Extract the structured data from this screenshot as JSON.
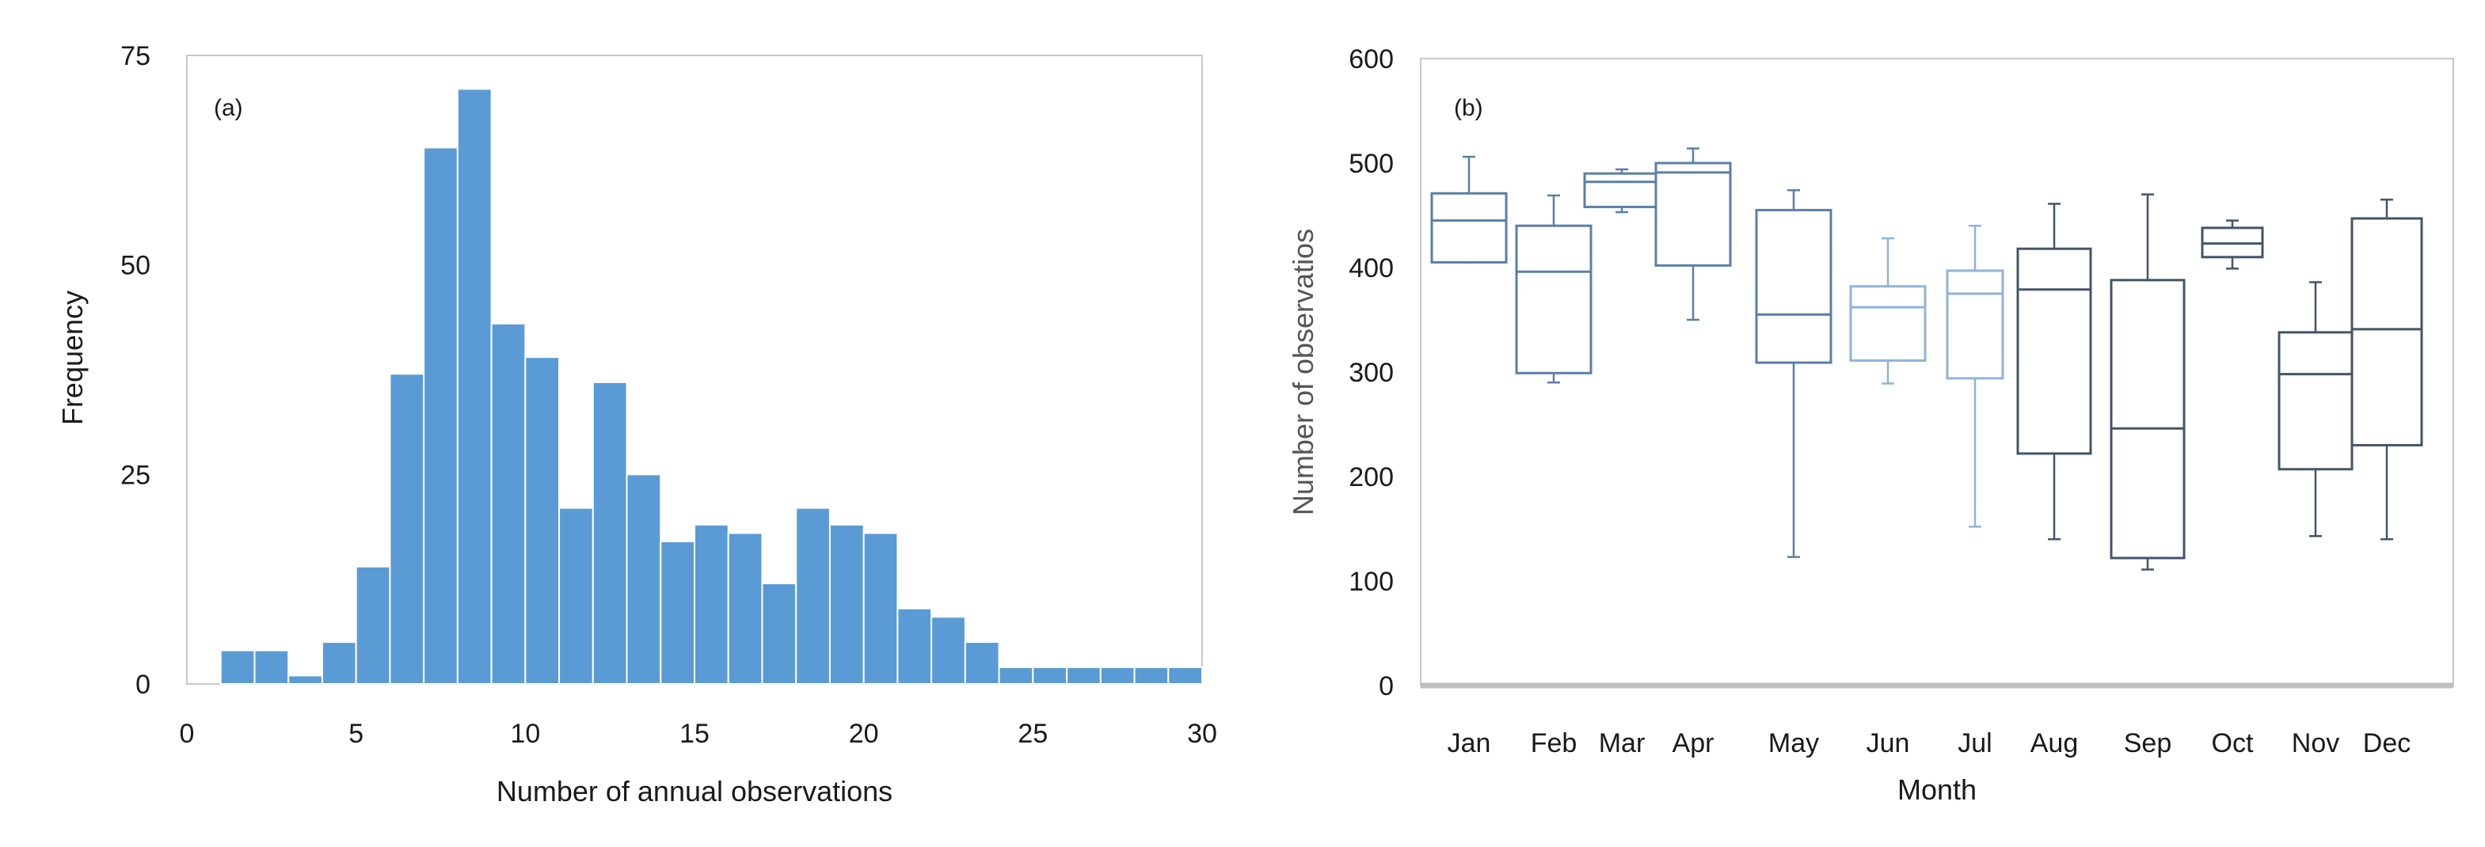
{
  "colors": {
    "bar": "#5b9bd5",
    "bar_edge": "#ffffff",
    "frame": "#c8c8c8",
    "box_dark": "#44546a",
    "box_mid": "#5a7fa8",
    "box_light": "#8fb4d8",
    "baseline": "#bfbfbf"
  },
  "chart_data": [
    {
      "type": "bar",
      "panel_label": "(a)",
      "xlabel": "Number of annual observations",
      "ylabel": "Frequency",
      "xlim": [
        0,
        30
      ],
      "ylim": [
        0,
        75
      ],
      "x_ticks": [
        "0",
        "5",
        "10",
        "15",
        "20",
        "25",
        "30"
      ],
      "y_ticks": [
        "0",
        "25",
        "50",
        "75"
      ],
      "bins": [
        {
          "start": 0,
          "end": 1,
          "value": 0
        },
        {
          "start": 1,
          "end": 2,
          "value": 4
        },
        {
          "start": 2,
          "end": 3,
          "value": 4
        },
        {
          "start": 3,
          "end": 4,
          "value": 1
        },
        {
          "start": 4,
          "end": 5,
          "value": 5
        },
        {
          "start": 5,
          "end": 6,
          "value": 14
        },
        {
          "start": 6,
          "end": 7,
          "value": 37
        },
        {
          "start": 7,
          "end": 8,
          "value": 64
        },
        {
          "start": 8,
          "end": 9,
          "value": 71
        },
        {
          "start": 9,
          "end": 10,
          "value": 43
        },
        {
          "start": 10,
          "end": 11,
          "value": 39
        },
        {
          "start": 11,
          "end": 12,
          "value": 21
        },
        {
          "start": 12,
          "end": 13,
          "value": 36
        },
        {
          "start": 13,
          "end": 14,
          "value": 25
        },
        {
          "start": 14,
          "end": 15,
          "value": 17
        },
        {
          "start": 15,
          "end": 16,
          "value": 19
        },
        {
          "start": 16,
          "end": 17,
          "value": 18
        },
        {
          "start": 17,
          "end": 18,
          "value": 12
        },
        {
          "start": 18,
          "end": 19,
          "value": 21
        },
        {
          "start": 19,
          "end": 20,
          "value": 19
        },
        {
          "start": 20,
          "end": 21,
          "value": 18
        },
        {
          "start": 21,
          "end": 22,
          "value": 9
        },
        {
          "start": 22,
          "end": 23,
          "value": 8
        },
        {
          "start": 23,
          "end": 24,
          "value": 5
        },
        {
          "start": 24,
          "end": 25,
          "value": 2
        },
        {
          "start": 25,
          "end": 26,
          "value": 2
        },
        {
          "start": 26,
          "end": 27,
          "value": 2
        },
        {
          "start": 27,
          "end": 28,
          "value": 2
        },
        {
          "start": 28,
          "end": 29,
          "value": 2
        },
        {
          "start": 29,
          "end": 30,
          "value": 2
        }
      ]
    },
    {
      "type": "box",
      "panel_label": "(b)",
      "xlabel": "Month",
      "ylabel": "Number of observatios",
      "ylim": [
        0,
        600
      ],
      "y_ticks": [
        "0",
        "100",
        "200",
        "300",
        "400",
        "500",
        "600"
      ],
      "categories": [
        "Jan",
        "Feb",
        "Mar",
        "Apr",
        "May",
        "Jun",
        "Jul",
        "Aug",
        "Sep",
        "Oct",
        "Nov",
        "Dec"
      ],
      "boxes": [
        {
          "month": "Jan",
          "min": 405,
          "q1": 405,
          "median": 445,
          "q3": 471,
          "max": 506,
          "shade": "box_mid"
        },
        {
          "month": "Feb",
          "min": 290,
          "q1": 299,
          "median": 396,
          "q3": 440,
          "max": 469,
          "shade": "box_mid"
        },
        {
          "month": "Mar",
          "min": 453,
          "q1": 458,
          "median": 482,
          "q3": 490,
          "max": 494,
          "shade": "box_mid"
        },
        {
          "month": "Apr",
          "min": 350,
          "q1": 402,
          "median": 491,
          "q3": 500,
          "max": 514,
          "shade": "box_mid"
        },
        {
          "month": "May",
          "min": 123,
          "q1": 309,
          "median": 355,
          "q3": 455,
          "max": 474,
          "shade": "box_mid"
        },
        {
          "month": "Jun",
          "min": 289,
          "q1": 311,
          "median": 362,
          "q3": 382,
          "max": 428,
          "shade": "box_light"
        },
        {
          "month": "Jul",
          "min": 152,
          "q1": 294,
          "median": 375,
          "q3": 397,
          "max": 440,
          "shade": "box_light"
        },
        {
          "month": "Aug",
          "min": 140,
          "q1": 222,
          "median": 379,
          "q3": 418,
          "max": 461,
          "shade": "box_dark"
        },
        {
          "month": "Sep",
          "min": 111,
          "q1": 122,
          "median": 246,
          "q3": 388,
          "max": 470,
          "shade": "box_dark"
        },
        {
          "month": "Oct",
          "min": 399,
          "q1": 410,
          "median": 423,
          "q3": 438,
          "max": 445,
          "shade": "box_dark"
        },
        {
          "month": "Nov",
          "min": 143,
          "q1": 207,
          "median": 298,
          "q3": 338,
          "max": 386,
          "shade": "box_dark"
        },
        {
          "month": "Dec",
          "min": 140,
          "q1": 230,
          "median": 341,
          "q3": 447,
          "max": 465,
          "shade": "box_dark"
        }
      ]
    }
  ]
}
